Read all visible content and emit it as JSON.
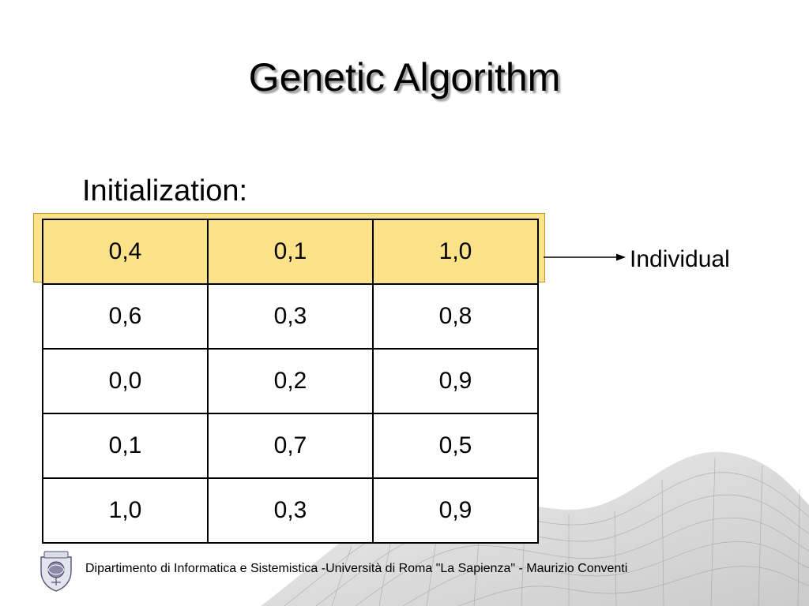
{
  "slide": {
    "title": "Genetic Algorithm",
    "subtitle": "Initialization:",
    "population_table": {
      "rows": [
        [
          "0,4",
          "0,1",
          "1,0"
        ],
        [
          "0,6",
          "0,3",
          "0,8"
        ],
        [
          "0,0",
          "0,2",
          "0,9"
        ],
        [
          "0,1",
          "0,7",
          "0,5"
        ],
        [
          "1,0",
          "0,3",
          "0,9"
        ]
      ],
      "highlight_color": "#fce289"
    },
    "annotation_label": "Individual",
    "footer": "Dipartimento di Informatica e Sistemistica -Università di Roma \"La Sapienza\" - Maurizio Conventi",
    "logo_icon": "university-seal-icon",
    "background_decoration": "mesh-surface-graphic"
  }
}
